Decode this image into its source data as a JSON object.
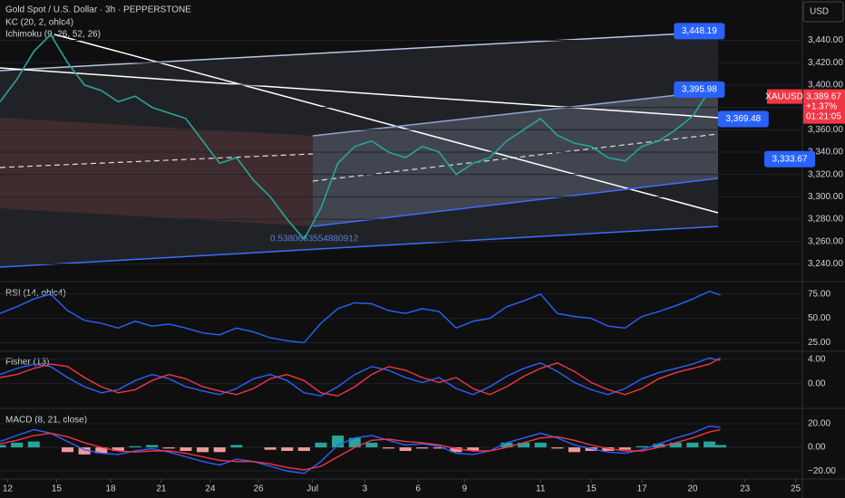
{
  "chart_data": [
    {
      "type": "line",
      "title": "Gold Spot / U.S. Dollar · 3h · PEPPERSTONE",
      "currency": "USD",
      "indicators": [
        "KC (20, 2, ohlc4)",
        "Ichimoku (9, 26, 52, 26)"
      ],
      "note": "0.5380663554880912",
      "x": [
        0,
        2,
        4,
        6,
        8,
        10,
        12,
        14,
        16,
        18,
        20,
        22,
        24,
        26,
        28,
        30,
        32,
        34,
        36,
        38,
        40,
        42,
        44,
        46,
        48,
        50,
        52,
        54,
        56,
        58,
        60,
        62,
        64,
        66,
        68,
        70,
        72,
        74,
        76,
        78,
        80,
        82,
        84,
        85.3
      ],
      "values": [
        3385,
        3405,
        3430,
        3445,
        3420,
        3400,
        3395,
        3385,
        3390,
        3380,
        3375,
        3370,
        3350,
        3330,
        3335,
        3315,
        3300,
        3280,
        3262,
        3290,
        3330,
        3345,
        3350,
        3340,
        3335,
        3345,
        3340,
        3320,
        3330,
        3335,
        3350,
        3360,
        3370,
        3355,
        3348,
        3345,
        3335,
        3332,
        3345,
        3350,
        3360,
        3372,
        3395,
        3389.67
      ],
      "color": "#26a69a",
      "xlim": [
        0,
        95
      ],
      "xticks": [
        {
          "value": 0.9,
          "label": "12"
        },
        {
          "value": 6.7,
          "label": "15"
        },
        {
          "value": 13.1,
          "label": "18"
        },
        {
          "value": 19.1,
          "label": "21"
        },
        {
          "value": 24.9,
          "label": "24"
        },
        {
          "value": 30.6,
          "label": "26"
        },
        {
          "value": 37,
          "label": "Jul"
        },
        {
          "value": 43.2,
          "label": "3"
        },
        {
          "value": 49.5,
          "label": "6"
        },
        {
          "value": 55,
          "label": "9"
        },
        {
          "value": 64,
          "label": "11"
        },
        {
          "value": 70,
          "label": "15"
        },
        {
          "value": 76,
          "label": "17"
        },
        {
          "value": 82,
          "label": "20"
        },
        {
          "value": 88.2,
          "label": "23"
        },
        {
          "value": 94.2,
          "label": "25"
        }
      ],
      "ylim": [
        3225,
        3476
      ],
      "yticks": [
        {
          "value": 3440,
          "label": "3,440.00"
        },
        {
          "value": 3420,
          "label": "3,420.00"
        },
        {
          "value": 3400,
          "label": "3,400.00"
        },
        {
          "value": 3380,
          "label": "3,380.00"
        },
        {
          "value": 3360,
          "label": "3,360.00"
        },
        {
          "value": 3340,
          "label": "3,340.00"
        },
        {
          "value": 3320,
          "label": "3,320.00"
        },
        {
          "value": 3300,
          "label": "3,300.00"
        },
        {
          "value": 3280,
          "label": "3,280.00"
        },
        {
          "value": 3260,
          "label": "3,260.00"
        },
        {
          "value": 3240,
          "label": "3,240.00"
        }
      ],
      "annotations": [
        {
          "x": 82.8,
          "value": 3448.19,
          "label": "3,448.19"
        },
        {
          "x": 82.8,
          "value": 3395.98,
          "label": "3,395.98"
        },
        {
          "x": 88,
          "value": 3369.48,
          "label": "3,369.48"
        },
        {
          "x": 93.5,
          "value": 3333.67,
          "label": "3,333.67"
        }
      ],
      "last_price": {
        "symbol": "XAUUSD",
        "value": 3389.67,
        "label": "3,389.67",
        "change": "+1.37%",
        "countdown": "01:21:05",
        "color": "#f23645"
      }
    },
    {
      "type": "line",
      "title": "RSI (14, ohlc4)",
      "color": "#2962ff",
      "values": [
        55,
        62,
        70,
        75,
        58,
        48,
        45,
        40,
        47,
        42,
        44,
        40,
        35,
        33,
        40,
        36,
        30,
        27,
        25,
        45,
        60,
        66,
        65,
        58,
        55,
        60,
        57,
        40,
        47,
        50,
        62,
        68,
        75,
        55,
        52,
        50,
        42,
        40,
        52,
        57,
        63,
        70,
        78,
        74
      ],
      "ylim": [
        17,
        86
      ],
      "yticks": [
        {
          "value": 75,
          "label": "75.00"
        },
        {
          "value": 50,
          "label": "50.00"
        },
        {
          "value": 25,
          "label": "25.00"
        }
      ]
    },
    {
      "type": "line",
      "title": "Fisher (13)",
      "series": [
        {
          "color": "#2962ff",
          "values": [
            1.5,
            2.5,
            3.2,
            2.8,
            1.0,
            -0.5,
            -1.5,
            -1.0,
            0.5,
            1.5,
            0.8,
            -0.5,
            -1.2,
            -1.8,
            -0.8,
            0.8,
            1.5,
            0.5,
            -1.5,
            -2,
            -0.5,
            1.5,
            2.8,
            2.2,
            1.0,
            0.2,
            1.0,
            -0.8,
            -1.8,
            -0.5,
            1.2,
            2.5,
            3.4,
            2.0,
            0.2,
            -1.0,
            -1.8,
            -0.8,
            0.8,
            1.8,
            2.5,
            3.2,
            4.2,
            3.8
          ]
        },
        {
          "color": "#f23645",
          "values": [
            1.0,
            1.5,
            2.5,
            3.2,
            2.8,
            1.0,
            -0.5,
            -1.5,
            -1.0,
            0.5,
            1.5,
            0.8,
            -0.5,
            -1.2,
            -1.8,
            -0.8,
            0.8,
            1.5,
            0.5,
            -1.5,
            -2,
            -0.5,
            1.5,
            2.8,
            2.2,
            1.0,
            0.2,
            1.0,
            -0.8,
            -1.8,
            -0.5,
            1.2,
            2.5,
            3.4,
            2.0,
            0.2,
            -1.0,
            -1.8,
            -0.8,
            0.8,
            1.8,
            2.5,
            3.2,
            4.2
          ]
        }
      ],
      "ylim": [
        -3.9,
        5
      ],
      "yticks": [
        {
          "value": 4,
          "label": "4.00"
        },
        {
          "value": 0,
          "label": "0.00"
        }
      ]
    },
    {
      "type": "line",
      "title": "MACD (8, 21, close)",
      "series": [
        {
          "color": "#2962ff",
          "values": [
            5,
            10,
            15,
            12,
            5,
            -2,
            -5,
            -6,
            -3,
            -1,
            -4,
            -8,
            -12,
            -15,
            -10,
            -12,
            -16,
            -20,
            -22,
            -12,
            2,
            8,
            10,
            6,
            2,
            3,
            1,
            -5,
            -6,
            -3,
            4,
            8,
            12,
            8,
            2,
            -1,
            -4,
            -5,
            -2,
            3,
            8,
            12,
            18,
            17
          ]
        },
        {
          "color": "#f23645",
          "values": [
            3,
            6,
            10,
            12,
            9,
            4,
            0,
            -3,
            -4,
            -3,
            -3,
            -5,
            -8,
            -11,
            -12,
            -12,
            -14,
            -17,
            -19,
            -16,
            -8,
            0,
            6,
            7,
            5,
            4,
            2,
            -1,
            -3,
            -3,
            0,
            4,
            8,
            9,
            6,
            2,
            -1,
            -3,
            -3,
            0,
            4,
            8,
            13,
            15
          ]
        }
      ],
      "histogram": {
        "values": [
          2,
          4,
          5,
          0,
          -4,
          -6,
          -5,
          -3,
          1,
          2,
          -1,
          -3,
          -4,
          -4,
          2,
          0,
          -2,
          -3,
          -3,
          4,
          10,
          8,
          4,
          -1,
          -3,
          -1,
          -1,
          -4,
          -3,
          0,
          4,
          4,
          4,
          -1,
          -4,
          -3,
          -3,
          -2,
          1,
          3,
          4,
          4,
          5,
          2
        ],
        "colors": [
          "#26a69a",
          "#ef9a9a"
        ]
      },
      "ylim": [
        -26,
        31.5
      ],
      "yticks": [
        {
          "value": 20,
          "label": "20.00"
        },
        {
          "value": 0,
          "label": "0.00"
        },
        {
          "value": -20,
          "label": "−20.00"
        }
      ]
    }
  ]
}
